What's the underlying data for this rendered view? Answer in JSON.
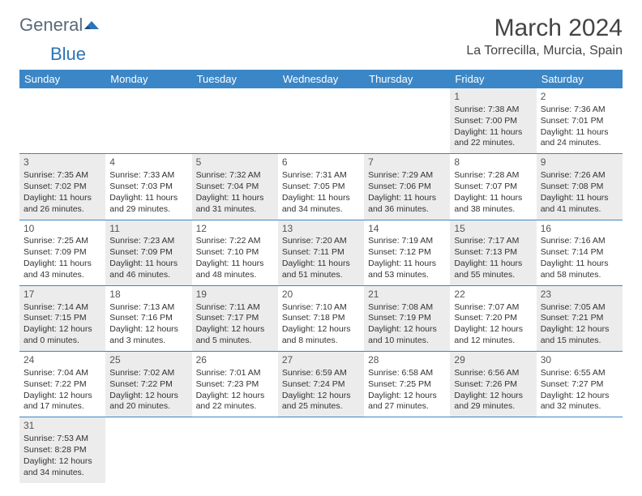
{
  "logo": {
    "part1": "General",
    "part2": "Blue"
  },
  "title": "March 2024",
  "location": "La Torrecilla, Murcia, Spain",
  "colors": {
    "header_bg": "#3b86c6",
    "header_text": "#ffffff",
    "cell_border": "#3b86c6",
    "shaded_bg": "#ececec",
    "text": "#333333",
    "logo_gray": "#5a6a7a",
    "logo_blue": "#2a74b8"
  },
  "weekdays": [
    "Sunday",
    "Monday",
    "Tuesday",
    "Wednesday",
    "Thursday",
    "Friday",
    "Saturday"
  ],
  "layout": {
    "rows": 6,
    "cols": 7,
    "cell_font_size": 10.5,
    "header_font_size": 13,
    "title_font_size": 30,
    "location_font_size": 16
  },
  "weeks": [
    [
      null,
      null,
      null,
      null,
      null,
      {
        "n": "1",
        "sunrise": "7:38 AM",
        "sunset": "7:00 PM",
        "daylight": "11 hours and 22 minutes."
      },
      {
        "n": "2",
        "sunrise": "7:36 AM",
        "sunset": "7:01 PM",
        "daylight": "11 hours and 24 minutes."
      }
    ],
    [
      {
        "n": "3",
        "sunrise": "7:35 AM",
        "sunset": "7:02 PM",
        "daylight": "11 hours and 26 minutes."
      },
      {
        "n": "4",
        "sunrise": "7:33 AM",
        "sunset": "7:03 PM",
        "daylight": "11 hours and 29 minutes."
      },
      {
        "n": "5",
        "sunrise": "7:32 AM",
        "sunset": "7:04 PM",
        "daylight": "11 hours and 31 minutes."
      },
      {
        "n": "6",
        "sunrise": "7:31 AM",
        "sunset": "7:05 PM",
        "daylight": "11 hours and 34 minutes."
      },
      {
        "n": "7",
        "sunrise": "7:29 AM",
        "sunset": "7:06 PM",
        "daylight": "11 hours and 36 minutes."
      },
      {
        "n": "8",
        "sunrise": "7:28 AM",
        "sunset": "7:07 PM",
        "daylight": "11 hours and 38 minutes."
      },
      {
        "n": "9",
        "sunrise": "7:26 AM",
        "sunset": "7:08 PM",
        "daylight": "11 hours and 41 minutes."
      }
    ],
    [
      {
        "n": "10",
        "sunrise": "7:25 AM",
        "sunset": "7:09 PM",
        "daylight": "11 hours and 43 minutes."
      },
      {
        "n": "11",
        "sunrise": "7:23 AM",
        "sunset": "7:09 PM",
        "daylight": "11 hours and 46 minutes."
      },
      {
        "n": "12",
        "sunrise": "7:22 AM",
        "sunset": "7:10 PM",
        "daylight": "11 hours and 48 minutes."
      },
      {
        "n": "13",
        "sunrise": "7:20 AM",
        "sunset": "7:11 PM",
        "daylight": "11 hours and 51 minutes."
      },
      {
        "n": "14",
        "sunrise": "7:19 AM",
        "sunset": "7:12 PM",
        "daylight": "11 hours and 53 minutes."
      },
      {
        "n": "15",
        "sunrise": "7:17 AM",
        "sunset": "7:13 PM",
        "daylight": "11 hours and 55 minutes."
      },
      {
        "n": "16",
        "sunrise": "7:16 AM",
        "sunset": "7:14 PM",
        "daylight": "11 hours and 58 minutes."
      }
    ],
    [
      {
        "n": "17",
        "sunrise": "7:14 AM",
        "sunset": "7:15 PM",
        "daylight": "12 hours and 0 minutes."
      },
      {
        "n": "18",
        "sunrise": "7:13 AM",
        "sunset": "7:16 PM",
        "daylight": "12 hours and 3 minutes."
      },
      {
        "n": "19",
        "sunrise": "7:11 AM",
        "sunset": "7:17 PM",
        "daylight": "12 hours and 5 minutes."
      },
      {
        "n": "20",
        "sunrise": "7:10 AM",
        "sunset": "7:18 PM",
        "daylight": "12 hours and 8 minutes."
      },
      {
        "n": "21",
        "sunrise": "7:08 AM",
        "sunset": "7:19 PM",
        "daylight": "12 hours and 10 minutes."
      },
      {
        "n": "22",
        "sunrise": "7:07 AM",
        "sunset": "7:20 PM",
        "daylight": "12 hours and 12 minutes."
      },
      {
        "n": "23",
        "sunrise": "7:05 AM",
        "sunset": "7:21 PM",
        "daylight": "12 hours and 15 minutes."
      }
    ],
    [
      {
        "n": "24",
        "sunrise": "7:04 AM",
        "sunset": "7:22 PM",
        "daylight": "12 hours and 17 minutes."
      },
      {
        "n": "25",
        "sunrise": "7:02 AM",
        "sunset": "7:22 PM",
        "daylight": "12 hours and 20 minutes."
      },
      {
        "n": "26",
        "sunrise": "7:01 AM",
        "sunset": "7:23 PM",
        "daylight": "12 hours and 22 minutes."
      },
      {
        "n": "27",
        "sunrise": "6:59 AM",
        "sunset": "7:24 PM",
        "daylight": "12 hours and 25 minutes."
      },
      {
        "n": "28",
        "sunrise": "6:58 AM",
        "sunset": "7:25 PM",
        "daylight": "12 hours and 27 minutes."
      },
      {
        "n": "29",
        "sunrise": "6:56 AM",
        "sunset": "7:26 PM",
        "daylight": "12 hours and 29 minutes."
      },
      {
        "n": "30",
        "sunrise": "6:55 AM",
        "sunset": "7:27 PM",
        "daylight": "12 hours and 32 minutes."
      }
    ],
    [
      {
        "n": "31",
        "sunrise": "7:53 AM",
        "sunset": "8:28 PM",
        "daylight": "12 hours and 34 minutes."
      },
      null,
      null,
      null,
      null,
      null,
      null
    ]
  ],
  "labels": {
    "sunrise": "Sunrise: ",
    "sunset": "Sunset: ",
    "daylight": "Daylight: "
  }
}
